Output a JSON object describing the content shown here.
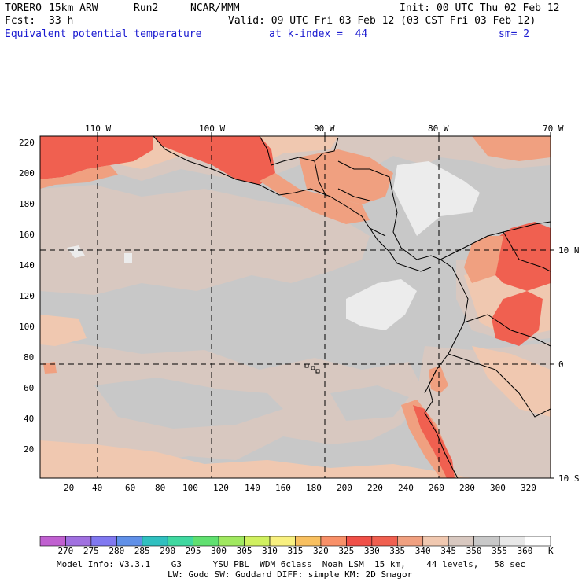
{
  "header": {
    "model": "TORERO",
    "resolution": "15km ARW",
    "run": "Run2",
    "center": "NCAR/MMM",
    "init": "Init: 00 UTC Thu 02 Feb 12",
    "fcst_label": "Fcst:",
    "fcst_value": "33 h",
    "valid": "Valid: 09 UTC Fri 03 Feb 12 (03 CST Fri 03 Feb 12)",
    "field": "Equivalent potential temperature",
    "level": "at k-index =  44",
    "smoothing": "sm= 2"
  },
  "map": {
    "lon_labels": [
      "110 W",
      "100 W",
      "90 W",
      "80 W",
      "70 W"
    ],
    "lat_labels": [
      "10 N",
      "0",
      "10 S"
    ],
    "y_grid_labels": [
      "220",
      "200",
      "180",
      "160",
      "140",
      "120",
      "100",
      "80",
      "60",
      "40",
      "20"
    ],
    "x_grid_labels": [
      "20",
      "40",
      "60",
      "80",
      "100",
      "120",
      "140",
      "160",
      "180",
      "200",
      "220",
      "240",
      "260",
      "280",
      "300",
      "320"
    ]
  },
  "colorbar": {
    "labels": [
      "270",
      "275",
      "280",
      "285",
      "290",
      "295",
      "300",
      "305",
      "310",
      "315",
      "320",
      "325",
      "330",
      "335",
      "340",
      "345",
      "350",
      "355",
      "360"
    ],
    "unit": "K",
    "colors": [
      "#c060d0",
      "#a070e0",
      "#8078f0",
      "#6090e8",
      "#30c0c0",
      "#40d8a0",
      "#60e070",
      "#a0e860",
      "#d0f060",
      "#f8f080",
      "#f8c060",
      "#f89068",
      "#f05048",
      "#f06050",
      "#f0a080",
      "#f0c8b0",
      "#d8c8c0",
      "#c8c8c8",
      "#e8e8e8",
      "#ffffff"
    ]
  },
  "footer": {
    "line1": "Model Info: V3.3.1    G3      YSU PBL  WDM 6class  Noah LSM  15 km,    44 levels,   58 sec",
    "line2": "LW: Godd SW: Goddard DIFF: simple KM: 2D Smagor"
  }
}
